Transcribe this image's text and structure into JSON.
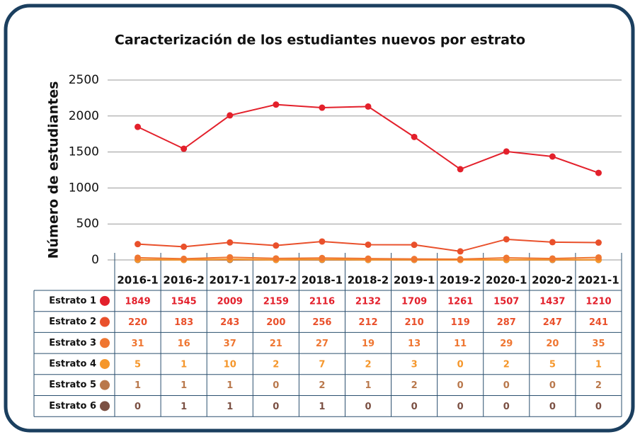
{
  "chart_data": {
    "type": "line",
    "title": "Caracterización de los estudiantes nuevos por estrato",
    "y_label": "Número de estudiantes",
    "categories": [
      "2016-1",
      "2016-2",
      "2017-1",
      "2017-2",
      "2018-1",
      "2018-2",
      "2019-1",
      "2019-2",
      "2020-1",
      "2020-2",
      "2021-1"
    ],
    "series": [
      {
        "name": "Estrato 1",
        "color": "#e3202b",
        "values": [
          1849,
          1545,
          2009,
          2159,
          2116,
          2132,
          1709,
          1261,
          1507,
          1437,
          1210
        ]
      },
      {
        "name": "Estrato 2",
        "color": "#e9502b",
        "values": [
          220,
          183,
          243,
          200,
          256,
          212,
          210,
          119,
          287,
          247,
          241
        ]
      },
      {
        "name": "Estrato 3",
        "color": "#ef7631",
        "values": [
          31,
          16,
          37,
          21,
          27,
          19,
          13,
          11,
          29,
          20,
          35
        ]
      },
      {
        "name": "Estrato 4",
        "color": "#f5962a",
        "values": [
          5,
          1,
          10,
          2,
          7,
          2,
          3,
          0,
          2,
          5,
          1
        ]
      },
      {
        "name": "Estrato 5",
        "color": "#b9784c",
        "values": [
          1,
          1,
          1,
          0,
          2,
          1,
          2,
          0,
          0,
          0,
          2
        ]
      },
      {
        "name": "Estrato 6",
        "color": "#7b5043",
        "values": [
          0,
          1,
          1,
          0,
          1,
          0,
          0,
          0,
          0,
          0,
          0
        ]
      }
    ],
    "ylim": [
      0,
      2500
    ],
    "yticks": [
      0,
      500,
      1000,
      1500,
      2000,
      2500
    ],
    "grid": true
  }
}
